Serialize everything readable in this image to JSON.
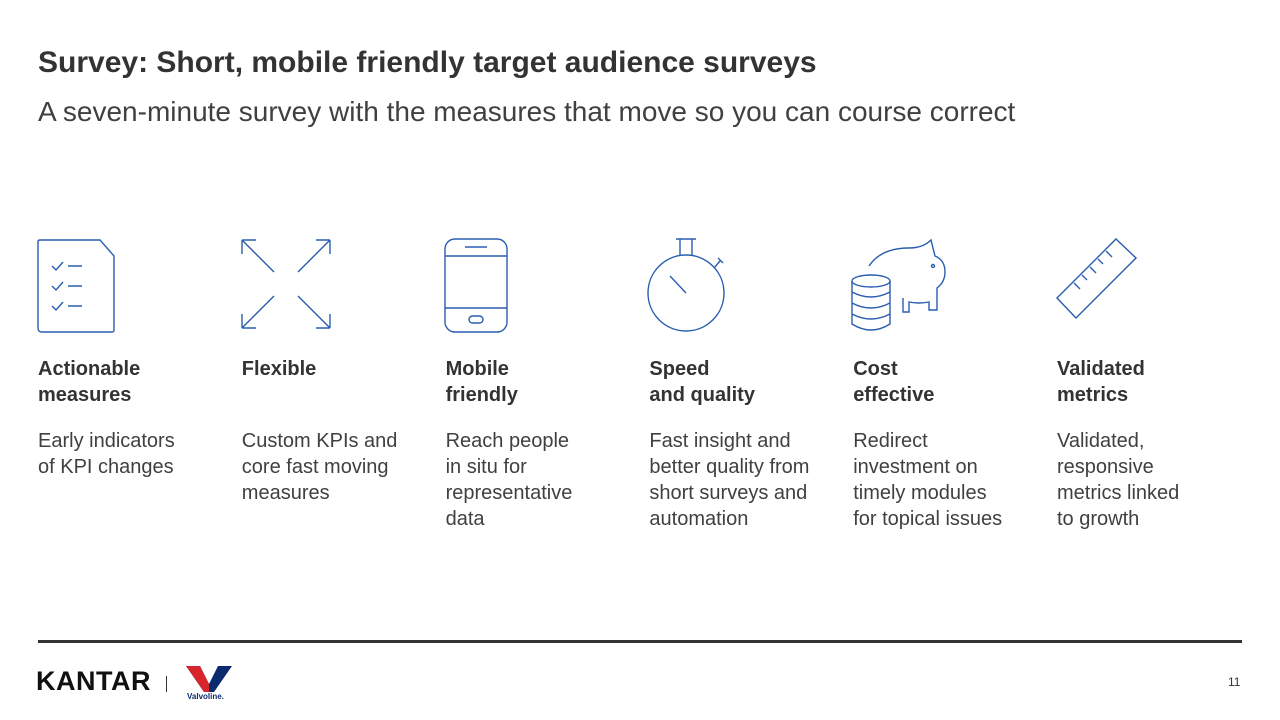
{
  "header": {
    "title": "Survey: Short, mobile friendly target audience surveys",
    "subtitle": "A seven-minute survey with the measures that move so you can course correct"
  },
  "features": [
    {
      "title": [
        "Actionable",
        "measures"
      ],
      "description": [
        "Early indicators",
        "of KPI changes"
      ]
    },
    {
      "title": [
        "Flexible"
      ],
      "description": [
        "Custom KPIs and",
        "core fast moving",
        "measures"
      ]
    },
    {
      "title": [
        "Mobile",
        "friendly"
      ],
      "description": [
        "Reach people",
        "in situ for",
        "representative",
        "data"
      ]
    },
    {
      "title": [
        "Speed",
        "and quality"
      ],
      "description": [
        "Fast insight and",
        "better quality from",
        "short surveys and",
        "automation"
      ]
    },
    {
      "title": [
        "Cost",
        "effective"
      ],
      "description": [
        "Redirect",
        "investment on",
        "timely modules",
        "for topical issues"
      ]
    },
    {
      "title": [
        "Validated",
        "metrics"
      ],
      "description": [
        "Validated,",
        "responsive",
        "metrics linked",
        "to growth"
      ]
    }
  ],
  "footer": {
    "brand": "KANTAR",
    "client": "Valvoline.",
    "page_number": 11
  }
}
